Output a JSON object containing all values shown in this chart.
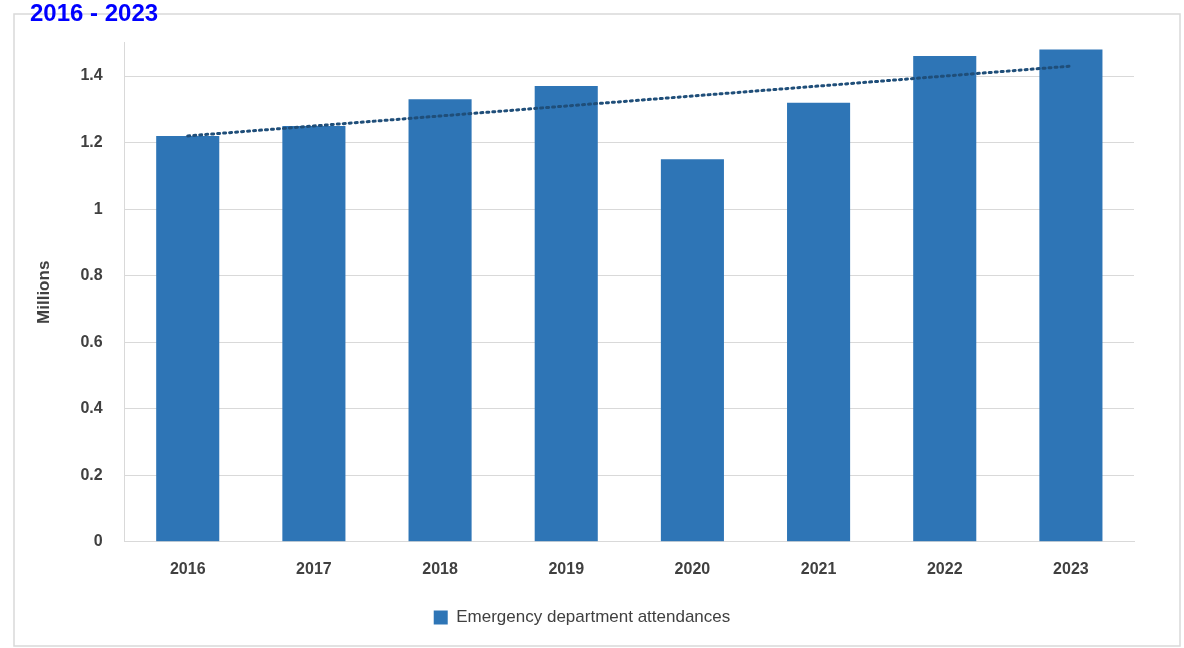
{
  "chart_data": {
    "type": "bar",
    "title": "2016 - 2023",
    "ylabel": "Millions",
    "categories": [
      "2016",
      "2017",
      "2018",
      "2019",
      "2020",
      "2021",
      "2022",
      "2023"
    ],
    "series": [
      {
        "name": "Emergency department attendances",
        "color": "#2e75b6",
        "values": [
          1.22,
          1.25,
          1.33,
          1.37,
          1.15,
          1.32,
          1.46,
          1.48
        ]
      },
      {
        "type": "line",
        "color": "#1f4e79",
        "line_style": "dotted",
        "marker": "none",
        "values": [
          1.22,
          1.25,
          1.28,
          1.31,
          1.34,
          1.37,
          1.4,
          1.43
        ]
      }
    ],
    "ylim": [
      0,
      1.5
    ],
    "yticks": [
      0,
      0.2,
      0.4,
      0.6,
      0.8,
      1,
      1.2,
      1.4
    ],
    "grid": "y",
    "legend": "bottom"
  }
}
